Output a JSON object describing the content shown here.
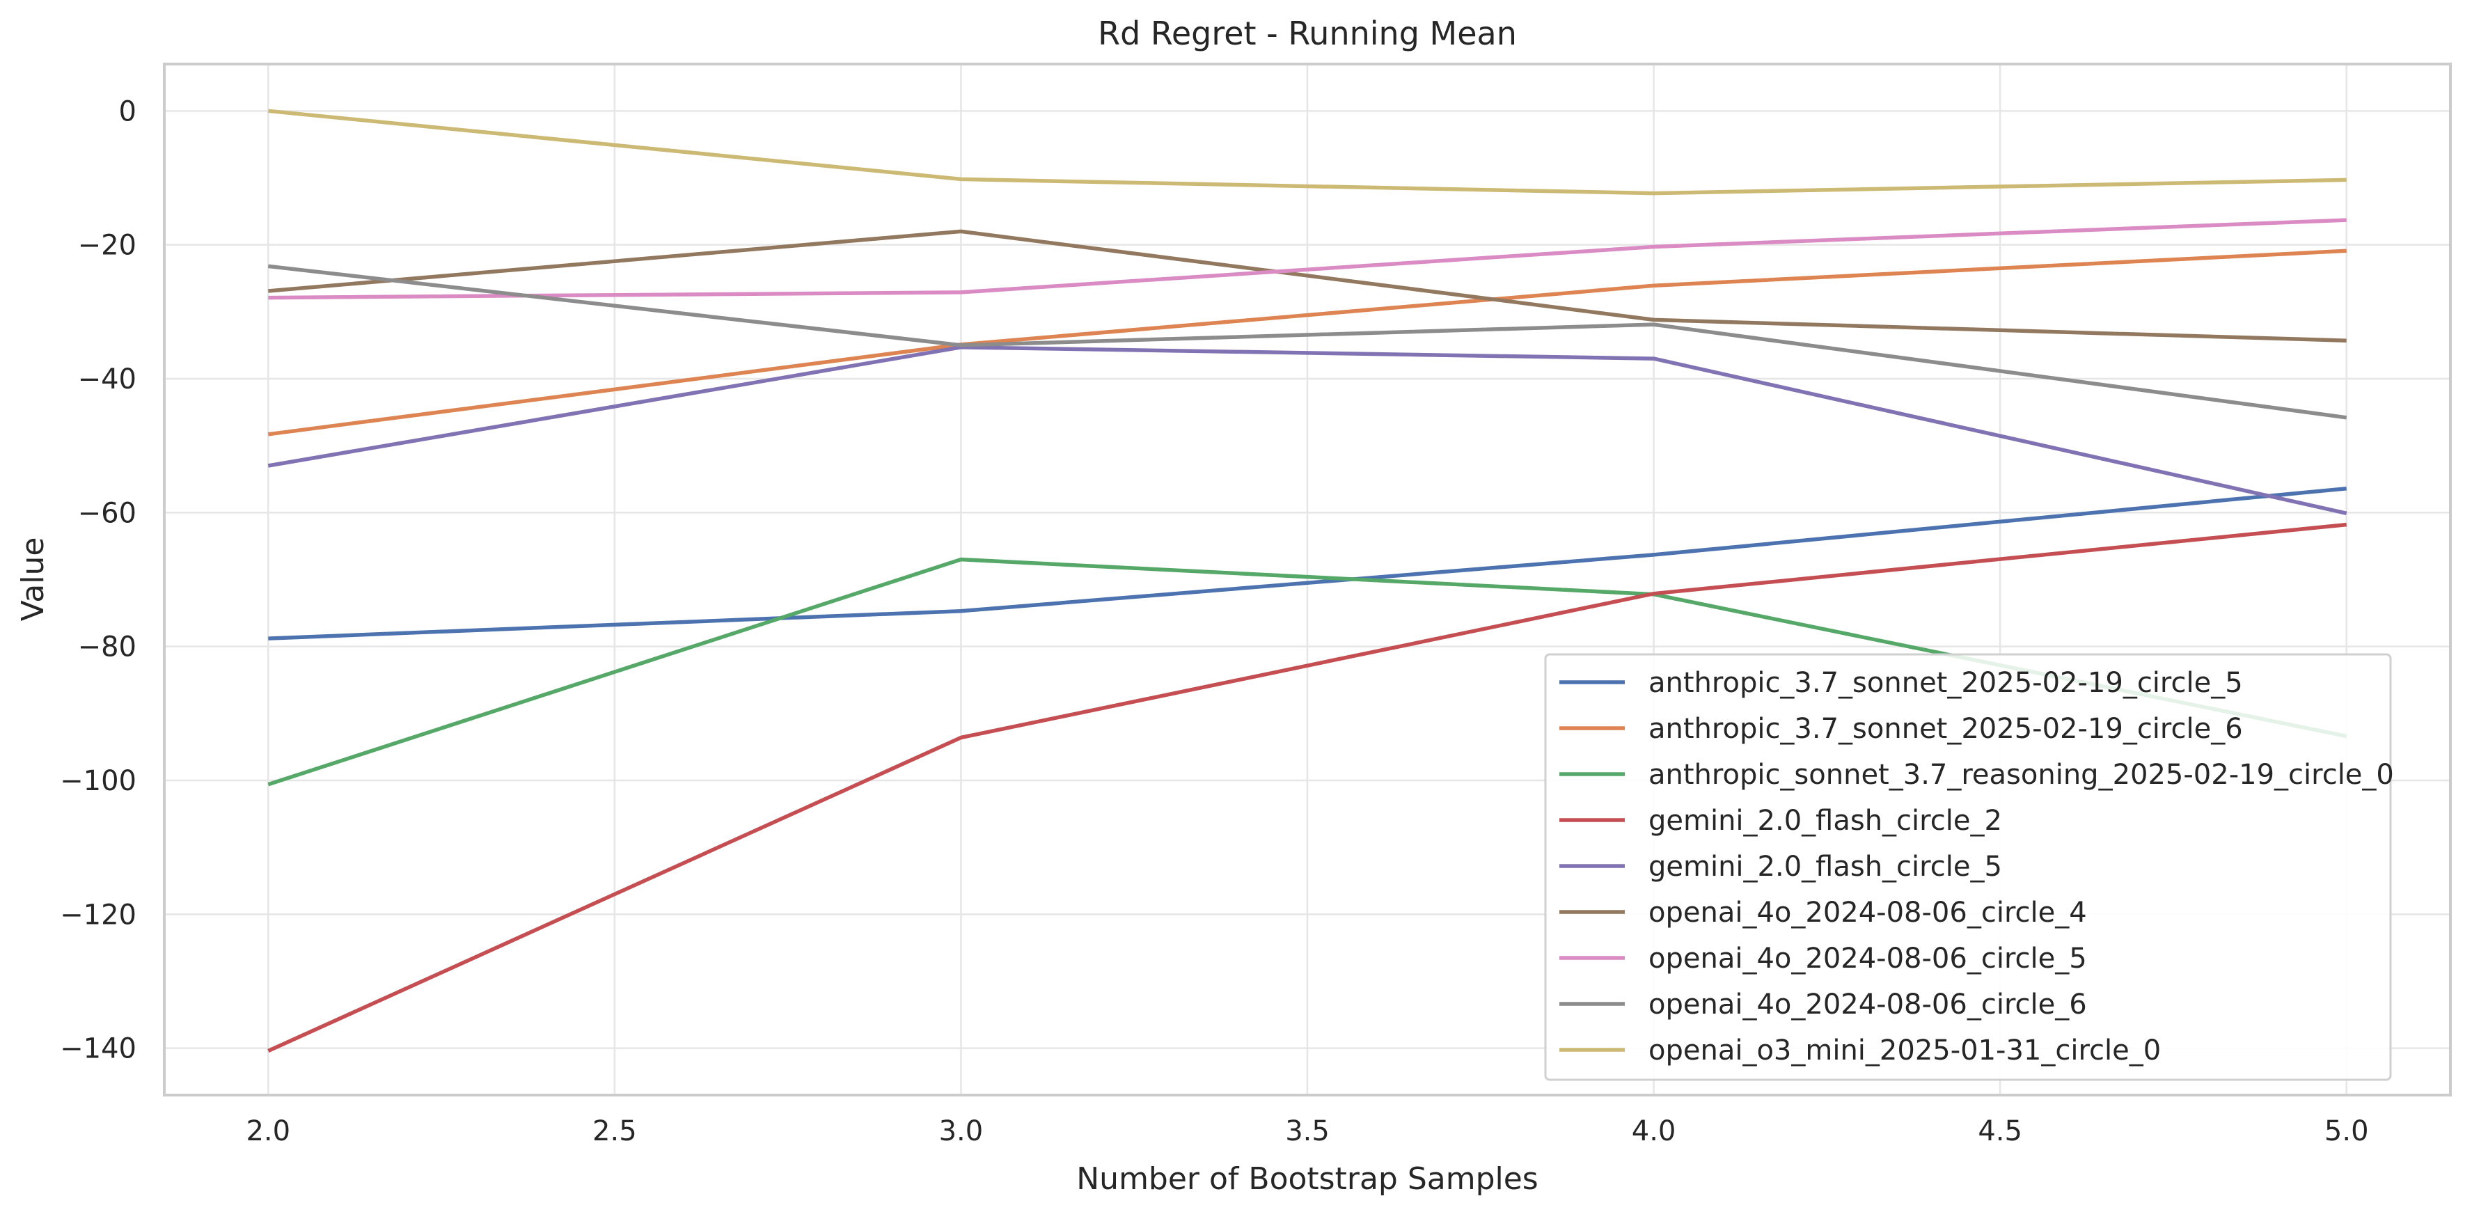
{
  "chart_data": {
    "type": "line",
    "title": "Rd Regret - Running Mean",
    "xlabel": "Number of Bootstrap Samples",
    "ylabel": "Value",
    "x": [
      2.0,
      3.0,
      4.0,
      5.0
    ],
    "xlim": [
      1.85,
      5.15
    ],
    "ylim": [
      -147,
      7
    ],
    "xticks": [
      2.0,
      2.5,
      3.0,
      3.5,
      4.0,
      4.5,
      5.0
    ],
    "xtick_labels": [
      "2.0",
      "2.5",
      "3.0",
      "3.5",
      "4.0",
      "4.5",
      "5.0"
    ],
    "yticks": [
      0,
      -20,
      -40,
      -60,
      -80,
      -100,
      -120,
      -140
    ],
    "ytick_labels": [
      "0",
      "−20",
      "−40",
      "−60",
      "−80",
      "−100",
      "−120",
      "−140"
    ],
    "grid": true,
    "legend_position": "lower-right",
    "series": [
      {
        "name": "anthropic_3.7_sonnet_2025-02-19_circle_5",
        "color": "#4c72b0",
        "values": [
          -78.8,
          -74.7,
          -66.3,
          -56.4
        ]
      },
      {
        "name": "anthropic_3.7_sonnet_2025-02-19_circle_6",
        "color": "#dd8452",
        "values": [
          -48.3,
          -34.9,
          -26.1,
          -20.9
        ]
      },
      {
        "name": "anthropic_sonnet_3.7_reasoning_2025-02-19_circle_0",
        "color": "#55a868",
        "values": [
          -100.6,
          -67.0,
          -72.2,
          -93.4
        ]
      },
      {
        "name": "gemini_2.0_flash_circle_2",
        "color": "#c44e52",
        "values": [
          -140.4,
          -93.6,
          -72.1,
          -61.8
        ]
      },
      {
        "name": "gemini_2.0_flash_circle_5",
        "color": "#8172b3",
        "values": [
          -53.0,
          -35.3,
          -37.0,
          -60.1
        ]
      },
      {
        "name": "openai_4o_2024-08-06_circle_4",
        "color": "#937860",
        "values": [
          -26.9,
          -18.0,
          -31.2,
          -34.3
        ]
      },
      {
        "name": "openai_4o_2024-08-06_circle_5",
        "color": "#da8bc3",
        "values": [
          -27.9,
          -27.1,
          -20.3,
          -16.3
        ]
      },
      {
        "name": "openai_4o_2024-08-06_circle_6",
        "color": "#8c8c8c",
        "values": [
          -23.2,
          -35.0,
          -31.9,
          -45.8
        ]
      },
      {
        "name": "openai_o3_mini_2025-01-31_circle_0",
        "color": "#ccb974",
        "values": [
          0.0,
          -10.2,
          -12.3,
          -10.3
        ]
      }
    ]
  }
}
